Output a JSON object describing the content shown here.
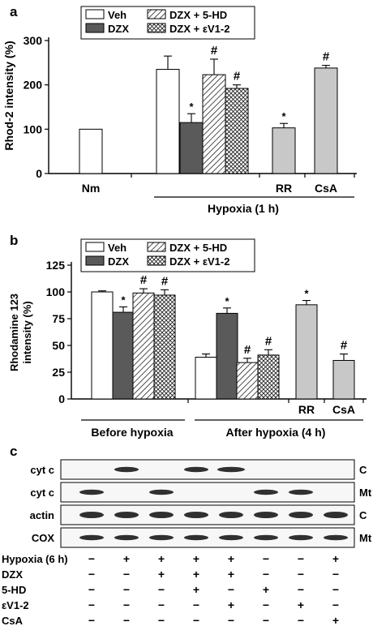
{
  "chart_data": [
    {
      "panel_label": "a",
      "type": "bar",
      "ylabel": "Rhod-2 intensity (%)",
      "ylim": [
        0,
        300
      ],
      "yticks": [
        "0",
        "100",
        "200",
        "300"
      ],
      "legend": [
        "Veh",
        "DZX",
        "DZX + 5-HD",
        "DZX + εV1-2"
      ],
      "categories": [
        "Nm",
        "Hypoxia Veh",
        "Hypoxia DZX",
        "Hypoxia DZX + 5-HD",
        "Hypoxia DZX + εV1-2",
        "RR",
        "CsA"
      ],
      "values": [
        100,
        235,
        115,
        223,
        192,
        103,
        238
      ],
      "errors": [
        0,
        30,
        20,
        35,
        8,
        10,
        6
      ],
      "patterns": [
        "white",
        "white",
        "dark",
        "hatch",
        "cross",
        "gray",
        "gray"
      ],
      "significance": [
        "",
        "",
        "*",
        "#",
        "#",
        "*",
        "#"
      ],
      "xlabels": [
        "Nm",
        "RR",
        "CsA"
      ],
      "group_label": "Hypoxia (1 h)"
    },
    {
      "panel_label": "b",
      "type": "bar",
      "ylabel_line1": "Rhodamine 123",
      "ylabel_line2": "intensity (%)",
      "ylim": [
        0,
        125
      ],
      "yticks": [
        "0",
        "25",
        "50",
        "75",
        "100",
        "125"
      ],
      "legend": [
        "Veh",
        "DZX",
        "DZX + 5-HD",
        "DZX + εV1-2"
      ],
      "categories": [
        "Before Veh",
        "Before DZX",
        "Before DZX + 5-HD",
        "Before DZX + εV1-2",
        "After Veh",
        "After DZX",
        "After DZX + 5-HD",
        "After DZX + εV1-2",
        "RR",
        "CsA"
      ],
      "values": [
        100,
        81,
        99,
        97,
        39,
        80,
        34,
        41,
        88,
        36
      ],
      "errors": [
        1,
        5,
        4,
        5,
        3,
        5,
        4,
        5,
        4,
        6
      ],
      "patterns": [
        "white",
        "dark",
        "hatch",
        "cross",
        "white",
        "dark",
        "hatch",
        "cross",
        "gray",
        "gray"
      ],
      "significance": [
        "",
        "*",
        "#",
        "#",
        "",
        "*",
        "#",
        "#",
        "*",
        "#"
      ],
      "xlabels": [
        "RR",
        "CsA"
      ],
      "group_labels": [
        "Before hypoxia",
        "After hypoxia (4 h)"
      ]
    }
  ],
  "blot": {
    "panel_label": "c",
    "rows": [
      {
        "label": "cyt c",
        "compartment": "C",
        "bands": [
          0,
          1,
          0,
          1,
          1,
          0,
          0,
          0
        ]
      },
      {
        "label": "cyt c",
        "compartment": "Mt",
        "bands": [
          1,
          0,
          1,
          0,
          0,
          1,
          1,
          0
        ]
      },
      {
        "label": "actin",
        "compartment": "C",
        "bands": [
          1,
          1,
          1,
          1,
          1,
          1,
          1,
          1
        ]
      },
      {
        "label": "COX",
        "compartment": "Mt",
        "bands": [
          1,
          1,
          1,
          1,
          1,
          1,
          1,
          1
        ]
      }
    ],
    "conditions": [
      {
        "label": "Hypoxia (6 h)",
        "signs": [
          "−",
          "+",
          "+",
          "+",
          "+",
          "−",
          "−",
          "+"
        ]
      },
      {
        "label": "DZX",
        "signs": [
          "−",
          "−",
          "+",
          "+",
          "+",
          "−",
          "−",
          "−"
        ]
      },
      {
        "label": "5-HD",
        "signs": [
          "−",
          "−",
          "−",
          "+",
          "−",
          "+",
          "−",
          "−"
        ]
      },
      {
        "label": "εV1-2",
        "signs": [
          "−",
          "−",
          "−",
          "−",
          "+",
          "−",
          "+",
          "−"
        ]
      },
      {
        "label": "CsA",
        "signs": [
          "−",
          "−",
          "−",
          "−",
          "−",
          "−",
          "−",
          "+"
        ]
      }
    ]
  }
}
